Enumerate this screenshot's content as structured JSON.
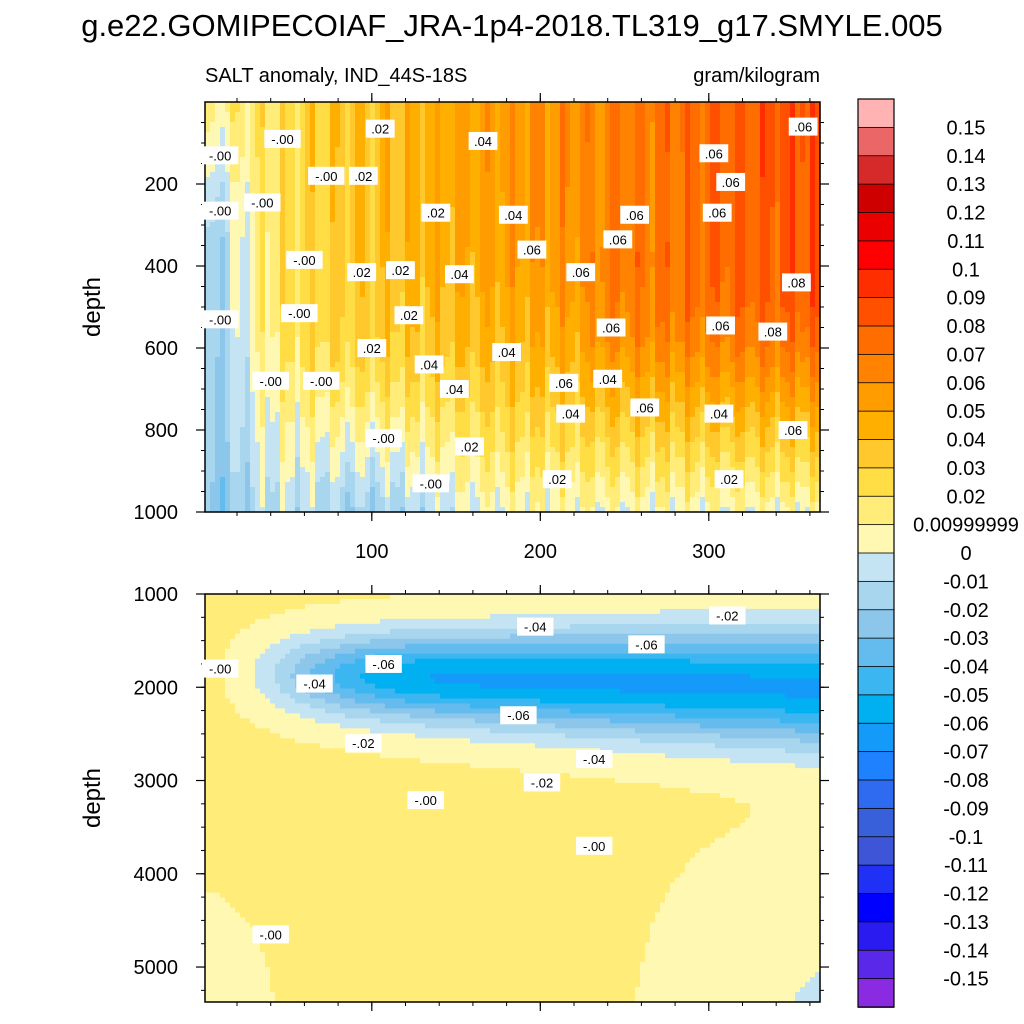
{
  "figure": {
    "title": "g.e22.GOMIPECOIAF_JRA-1p4-2018.TL319_g17.SMYLE.005",
    "subtitle_left": "SALT anomaly, IND_44S-18S",
    "subtitle_right": "gram/kilogram"
  },
  "chart_data": [
    {
      "type": "heatmap",
      "panel": "upper",
      "xlabel": "",
      "ylabel": "depth",
      "xlim": [
        1,
        366
      ],
      "ylim": [
        1000,
        0
      ],
      "xticks": [
        100,
        200,
        300
      ],
      "yticks": [
        200,
        400,
        600,
        800,
        1000
      ],
      "contour_labels": [
        {
          "x": 10,
          "y": 130,
          "text": "-.00"
        },
        {
          "x": 47,
          "y": 90,
          "text": "-.00"
        },
        {
          "x": 10,
          "y": 265,
          "text": "-.00"
        },
        {
          "x": 35,
          "y": 245,
          "text": "-.00"
        },
        {
          "x": 73,
          "y": 180,
          "text": "-.00"
        },
        {
          "x": 60,
          "y": 385,
          "text": "-.00"
        },
        {
          "x": 10,
          "y": 530,
          "text": "-.00"
        },
        {
          "x": 57,
          "y": 515,
          "text": "-.00"
        },
        {
          "x": 40,
          "y": 680,
          "text": "-.00"
        },
        {
          "x": 70,
          "y": 680,
          "text": "-.00"
        },
        {
          "x": 107,
          "y": 820,
          "text": "-.00"
        },
        {
          "x": 135,
          "y": 930,
          "text": "-.00"
        },
        {
          "x": 105,
          "y": 65,
          "text": ".02"
        },
        {
          "x": 95,
          "y": 180,
          "text": ".02"
        },
        {
          "x": 138,
          "y": 270,
          "text": ".02"
        },
        {
          "x": 94,
          "y": 415,
          "text": ".02"
        },
        {
          "x": 117,
          "y": 410,
          "text": ".02"
        },
        {
          "x": 122,
          "y": 520,
          "text": ".02"
        },
        {
          "x": 100,
          "y": 600,
          "text": ".02"
        },
        {
          "x": 158,
          "y": 840,
          "text": ".02"
        },
        {
          "x": 210,
          "y": 920,
          "text": ".02"
        },
        {
          "x": 312,
          "y": 920,
          "text": ".02"
        },
        {
          "x": 166,
          "y": 95,
          "text": ".04"
        },
        {
          "x": 184,
          "y": 275,
          "text": ".04"
        },
        {
          "x": 152,
          "y": 420,
          "text": ".04"
        },
        {
          "x": 134,
          "y": 640,
          "text": ".04"
        },
        {
          "x": 149,
          "y": 700,
          "text": ".04"
        },
        {
          "x": 180,
          "y": 610,
          "text": ".04"
        },
        {
          "x": 240,
          "y": 675,
          "text": ".04"
        },
        {
          "x": 218,
          "y": 760,
          "text": ".04"
        },
        {
          "x": 306,
          "y": 760,
          "text": ".04"
        },
        {
          "x": 195,
          "y": 360,
          "text": ".06"
        },
        {
          "x": 224,
          "y": 415,
          "text": ".06"
        },
        {
          "x": 246,
          "y": 335,
          "text": ".06"
        },
        {
          "x": 256,
          "y": 275,
          "text": ".06"
        },
        {
          "x": 242,
          "y": 550,
          "text": ".06"
        },
        {
          "x": 214,
          "y": 685,
          "text": ".06"
        },
        {
          "x": 262,
          "y": 745,
          "text": ".06"
        },
        {
          "x": 303,
          "y": 125,
          "text": ".06"
        },
        {
          "x": 313,
          "y": 195,
          "text": ".06"
        },
        {
          "x": 305,
          "y": 270,
          "text": ".06"
        },
        {
          "x": 307,
          "y": 545,
          "text": ".06"
        },
        {
          "x": 350,
          "y": 800,
          "text": ".06"
        },
        {
          "x": 356,
          "y": 60,
          "text": ".06"
        },
        {
          "x": 352,
          "y": 440,
          "text": ".08"
        },
        {
          "x": 338,
          "y": 560,
          "text": ".08"
        }
      ]
    },
    {
      "type": "heatmap",
      "panel": "lower",
      "xlabel": "",
      "ylabel": "depth",
      "xlim": [
        1,
        366
      ],
      "ylim": [
        5375,
        1000
      ],
      "xticks": [
        100,
        200,
        300
      ],
      "yticks": [
        1000,
        2000,
        3000,
        4000,
        5000
      ],
      "contour_labels": [
        {
          "x": 10,
          "y": 1800,
          "text": "-.00"
        },
        {
          "x": 132,
          "y": 3210,
          "text": "-.00"
        },
        {
          "x": 232,
          "y": 3700,
          "text": "-.00"
        },
        {
          "x": 40,
          "y": 4650,
          "text": "-.00"
        },
        {
          "x": 311,
          "y": 1230,
          "text": "-.02"
        },
        {
          "x": 95,
          "y": 2600,
          "text": "-.02"
        },
        {
          "x": 201,
          "y": 3020,
          "text": "-.02"
        },
        {
          "x": 197,
          "y": 1350,
          "text": "-.04"
        },
        {
          "x": 66,
          "y": 1960,
          "text": "-.04"
        },
        {
          "x": 232,
          "y": 2770,
          "text": "-.04"
        },
        {
          "x": 107,
          "y": 1750,
          "text": "-.06"
        },
        {
          "x": 263,
          "y": 1540,
          "text": "-.06"
        },
        {
          "x": 187,
          "y": 2300,
          "text": "-.06"
        }
      ]
    }
  ],
  "colorbar": {
    "labels": [
      "0.15",
      "0.14",
      "0.13",
      "0.12",
      "0.11",
      "0.1",
      "0.09",
      "0.08",
      "0.07",
      "0.06",
      "0.05",
      "0.04",
      "0.03",
      "0.02",
      "0.00999999",
      "0",
      "-0.01",
      "-0.02",
      "-0.03",
      "-0.04",
      "-0.05",
      "-0.06",
      "-0.07",
      "-0.08",
      "-0.09",
      "-0.1",
      "-0.11",
      "-0.12",
      "-0.13",
      "-0.14",
      "-0.15"
    ],
    "colors": [
      "#FFB3B3",
      "#EB6666",
      "#D62A2A",
      "#CE0000",
      "#EB0000",
      "#FF0000",
      "#FF2E00",
      "#FF5000",
      "#FF6C00",
      "#FF8300",
      "#FF9C00",
      "#FFAF00",
      "#FFC92E",
      "#FFDD45",
      "#FFEC79",
      "#FFF8B3",
      "#C5E4F3",
      "#A9D6EF",
      "#8DC6EB",
      "#64BCEE",
      "#3CB6F1",
      "#00B0F0",
      "#149BFA",
      "#1E82FF",
      "#2E6BF0",
      "#3960DB",
      "#3F55D8",
      "#2030F5",
      "#0000FF",
      "#2A1CF0",
      "#5A28E8",
      "#8A2BE2"
    ]
  }
}
